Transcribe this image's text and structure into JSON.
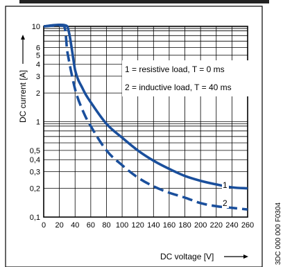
{
  "chart_data": {
    "type": "line",
    "title": "",
    "xlabel": "DC voltage [V]",
    "ylabel": "DC current [A]",
    "xlim": [
      0,
      260
    ],
    "ylim": [
      0.1,
      10
    ],
    "yscale": "log",
    "grid": true,
    "x_ticks": [
      "0",
      "20",
      "40",
      "60",
      "80",
      "100",
      "120",
      "140",
      "160",
      "180",
      "200",
      "220",
      "240",
      "260"
    ],
    "y_ticks": [
      {
        "value": 10,
        "label": "10"
      },
      {
        "value": 6,
        "label": "6"
      },
      {
        "value": 5,
        "label": "5"
      },
      {
        "value": 4,
        "label": "4"
      },
      {
        "value": 3,
        "label": "3"
      },
      {
        "value": 2,
        "label": "2"
      },
      {
        "value": 1,
        "label": "1"
      },
      {
        "value": 0.5,
        "label": "0,5"
      },
      {
        "value": 0.4,
        "label": "0,4"
      },
      {
        "value": 0.3,
        "label": "0,3"
      },
      {
        "value": 0.2,
        "label": "0,2"
      },
      {
        "value": 0.1,
        "label": "0,1"
      }
    ],
    "legend": [
      "1 = resistive load, T = 0 ms",
      "2 = inductive load, T = 40 ms"
    ],
    "series": [
      {
        "name": "1",
        "style": "solid",
        "color": "#1a4f9c",
        "x": [
          0,
          30,
          40,
          50,
          60,
          80,
          100,
          120,
          140,
          160,
          180,
          200,
          220,
          240,
          260
        ],
        "y": [
          10,
          10,
          3.5,
          2.2,
          1.6,
          0.95,
          0.68,
          0.5,
          0.39,
          0.32,
          0.27,
          0.24,
          0.22,
          0.205,
          0.2
        ]
      },
      {
        "name": "2",
        "style": "dashed",
        "color": "#1a4f9c",
        "x": [
          0,
          26,
          30,
          40,
          50,
          60,
          80,
          100,
          120,
          140,
          160,
          180,
          200,
          220,
          240,
          260
        ],
        "y": [
          10,
          10,
          5.5,
          2.2,
          1.3,
          0.9,
          0.5,
          0.35,
          0.26,
          0.21,
          0.18,
          0.16,
          0.14,
          0.13,
          0.125,
          0.12
        ]
      }
    ],
    "series_labels": [
      "1",
      "2"
    ],
    "side_code": "3DC 000 000 F0304",
    "header_fragment": ""
  }
}
